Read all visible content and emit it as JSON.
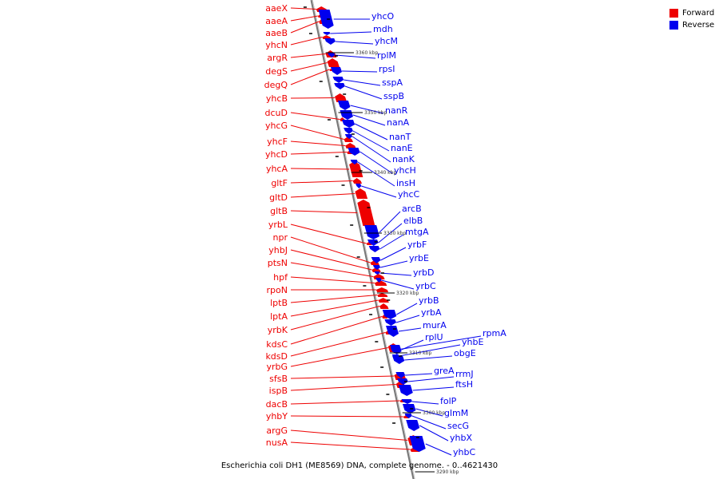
{
  "caption": "Escherichia coli DH1 (ME8569) DNA, complete genome. - 0..4621430",
  "legend": [
    {
      "label": "Forward",
      "color": "#ee0000"
    },
    {
      "label": "Reverse",
      "color": "#0000ee"
    }
  ],
  "colors": {
    "forward": "#ee0000",
    "reverse": "#0000ee",
    "backbone": "#777777"
  },
  "scale_labels": [
    "3360 kbp",
    "3350 kbp",
    "3340 kbp",
    "3330 kbp",
    "3320 kbp",
    "3310 kbp",
    "3300 kbp",
    "3290 kbp"
  ],
  "forward_genes": [
    "aaeX",
    "aaeA",
    "aaeB",
    "yhcN",
    "argR",
    "degS",
    "degQ",
    "yhcB",
    "dcuD",
    "yhcG",
    "yhcF",
    "yhcD",
    "yhcA",
    "gltF",
    "gltD",
    "gltB",
    "yrbL",
    "npr",
    "yhbJ",
    "ptsN",
    "hpf",
    "rpoN",
    "lptB",
    "lptA",
    "yrbK",
    "kdsC",
    "kdsD",
    "yrbG",
    "sfsB",
    "ispB",
    "dacB",
    "yhbY",
    "argG",
    "nusA"
  ],
  "reverse_genes": [
    "yhcO",
    "mdh",
    "yhcM",
    "rplM",
    "rpsI",
    "sspA",
    "sspB",
    "nanR",
    "nanA",
    "nanT",
    "nanE",
    "nanK",
    "yhcH",
    "insH",
    "yhcC",
    "arcB",
    "elbB",
    "mtgA",
    "yrbF",
    "yrbE",
    "yrbD",
    "yrbC",
    "yrbB",
    "yrbA",
    "murA",
    "rplU",
    "rpmA",
    "yhbE",
    "obgE",
    "greA",
    "rrmJ",
    "ftsH",
    "folP",
    "glmM",
    "secG",
    "yhbX",
    "yhbC"
  ]
}
